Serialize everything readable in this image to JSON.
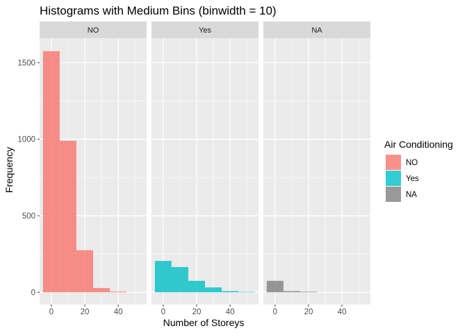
{
  "chart_data": {
    "type": "bar",
    "title": "Histograms with Medium Bins (binwidth = 10)",
    "xlabel": "Number of Storeys",
    "ylabel": "Frequency",
    "binwidth": 10,
    "xlim": [
      -7,
      57
    ],
    "ylim": [
      -80,
      1660
    ],
    "x_ticks": [
      0,
      20,
      40
    ],
    "y_ticks": [
      0,
      500,
      1000,
      1500
    ],
    "bin_starts": [
      -5,
      5,
      15,
      25,
      35,
      45
    ],
    "panels": [
      {
        "label": "NO",
        "color": "#F8766D",
        "values": [
          1575,
          990,
          275,
          28,
          5,
          0
        ]
      },
      {
        "label": "Yes",
        "color": "#00BFC4",
        "values": [
          205,
          165,
          75,
          32,
          8,
          3
        ]
      },
      {
        "label": "NA",
        "color": "#808080",
        "values": [
          75,
          8,
          4,
          0,
          0,
          0
        ]
      }
    ],
    "legend": {
      "title": "Air Conditioning",
      "position": "right",
      "items": [
        {
          "label": "NO",
          "color": "#F8766D"
        },
        {
          "label": "Yes",
          "color": "#00BFC4"
        },
        {
          "label": "NA",
          "color": "#808080"
        }
      ]
    },
    "panel_background": "#EBEBEB",
    "strip_background": "#D9D9D9",
    "grid": true,
    "fill_alpha": 0.8
  }
}
